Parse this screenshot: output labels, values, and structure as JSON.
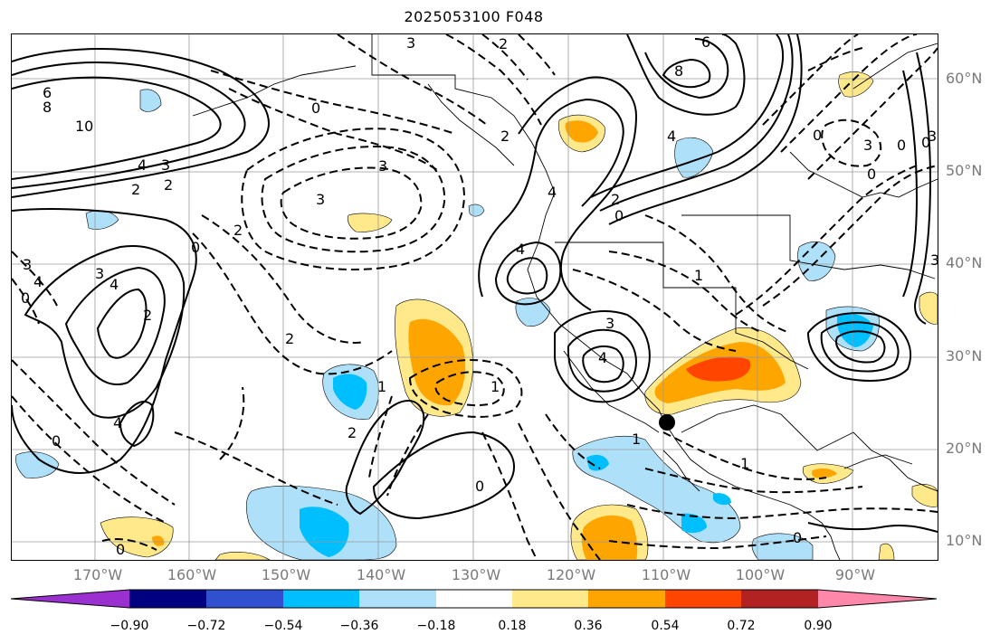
{
  "title": "2025053100 F048",
  "map": {
    "lat_labels": [
      "60°N",
      "50°N",
      "40°N",
      "30°N",
      "20°N",
      "10°N"
    ],
    "lon_labels": [
      "170°W",
      "160°W",
      "150°W",
      "140°W",
      "130°W",
      "120°W",
      "110°W",
      "100°W",
      "90°W"
    ],
    "contour_labels": [
      "3",
      "2",
      "6",
      "8",
      "0",
      "3",
      "2",
      "3",
      "4",
      "6",
      "8",
      "10",
      "4",
      "3",
      "2",
      "2",
      "0",
      "4",
      "3",
      "2",
      "4",
      "3",
      "4",
      "0",
      "1",
      "2",
      "1",
      "2",
      "0",
      "0",
      "4",
      "1",
      "0",
      "2",
      "0",
      "0",
      "3",
      "4",
      "3",
      "0",
      "1",
      "4",
      "0",
      "0",
      "2",
      "3",
      "0",
      "1",
      "3"
    ],
    "marker": "black-dot"
  },
  "colorbar": {
    "ticks": [
      "−0.90",
      "−0.72",
      "−0.54",
      "−0.36",
      "−0.18",
      "0.18",
      "0.36",
      "0.54",
      "0.72",
      "0.90"
    ],
    "colors": [
      "#9b30d0",
      "#000080",
      "#3050d0",
      "#00bfff",
      "#aee0fa",
      "#ffffff",
      "#ffe98a",
      "#ffa500",
      "#ff4500",
      "#b22222",
      "#ff88aa"
    ]
  }
}
